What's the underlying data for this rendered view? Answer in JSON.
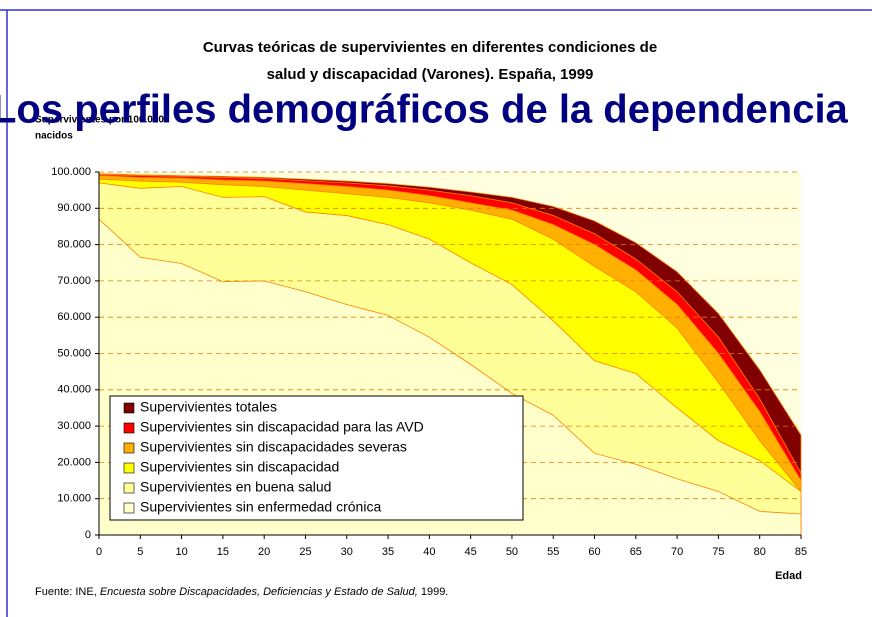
{
  "slide_title": "Los perfiles demográficos de la dependencia",
  "chart_data": {
    "type": "area",
    "title_lines": [
      "Curvas teóricas de supervivientes en diferentes condiciones de",
      "salud y discapacidad (Varones). España, 1999"
    ],
    "y_label_lines": [
      "Supervivientes por 100.000",
      "nacidos"
    ],
    "x_label": "Edad",
    "x": [
      0,
      5,
      10,
      15,
      20,
      25,
      30,
      35,
      40,
      45,
      50,
      55,
      60,
      65,
      70,
      75,
      80,
      85
    ],
    "xlim": [
      0,
      85
    ],
    "xticks": [
      0,
      5,
      10,
      15,
      20,
      25,
      30,
      35,
      40,
      45,
      50,
      55,
      60,
      65,
      70,
      75,
      80,
      85
    ],
    "ylim": [
      0,
      100000
    ],
    "yticks": [
      0,
      {
        "value": 10000,
        "label": "10.000"
      },
      {
        "value": 20000,
        "label": "20.000"
      },
      {
        "value": 30000,
        "label": "30.000"
      },
      {
        "value": 40000,
        "label": "40.000"
      },
      {
        "value": 50000,
        "label": "50.000"
      },
      {
        "value": 60000,
        "label": "60.000"
      },
      {
        "value": 70000,
        "label": "70.000"
      },
      {
        "value": 80000,
        "label": "80.000"
      },
      {
        "value": 90000,
        "label": "90.000"
      },
      {
        "value": 100000,
        "label": "100.000"
      }
    ],
    "grid": true,
    "series": [
      {
        "name": "Supervivientes totales",
        "color": "#800000",
        "values": [
          99500,
          99200,
          99000,
          98800,
          98500,
          98000,
          97500,
          96800,
          95800,
          94500,
          93000,
          90500,
          86500,
          80500,
          72500,
          61000,
          45500,
          27500
        ]
      },
      {
        "name": "Supervivientes sin discapacidad para las AVD",
        "color": "#ff0000",
        "values": [
          99300,
          99000,
          98800,
          98500,
          98200,
          97600,
          97000,
          96200,
          95000,
          93500,
          91500,
          88000,
          83000,
          76000,
          67000,
          54500,
          37500,
          17000
        ]
      },
      {
        "name": "Supervivientes sin discapacidades severas",
        "color": "#ffb000",
        "values": [
          99000,
          98500,
          98300,
          97800,
          97500,
          96800,
          96000,
          95000,
          93500,
          91500,
          89500,
          85500,
          80000,
          73000,
          63500,
          50000,
          34000,
          15000
        ]
      },
      {
        "name": "Supervivientes sin discapacidad",
        "color": "#ffff00",
        "values": [
          98000,
          97500,
          97200,
          96500,
          96000,
          95000,
          94000,
          93000,
          91500,
          89500,
          87000,
          81500,
          74000,
          67000,
          57000,
          42000,
          26000,
          12000
        ]
      },
      {
        "name": "Supervivientes en buena salud",
        "color": "#ffff99",
        "values": [
          97000,
          95500,
          96000,
          93000,
          93200,
          89000,
          88000,
          85500,
          81500,
          75000,
          69000,
          59000,
          48000,
          44500,
          35000,
          26000,
          20500,
          12000
        ]
      },
      {
        "name": "Supervivientes sin enfermedad crónica",
        "color": "#ffffcc",
        "values": [
          87000,
          76500,
          74800,
          69800,
          70000,
          67000,
          63500,
          60500,
          54500,
          47000,
          39000,
          33000,
          22500,
          19500,
          15500,
          12000,
          6500,
          5800
        ]
      }
    ],
    "source_prefix": "Fuente: INE, ",
    "source_title": "Encuesta sobre Discapacidades, Deficiencias y Estado de Salud,",
    "source_suffix": " 1999."
  }
}
